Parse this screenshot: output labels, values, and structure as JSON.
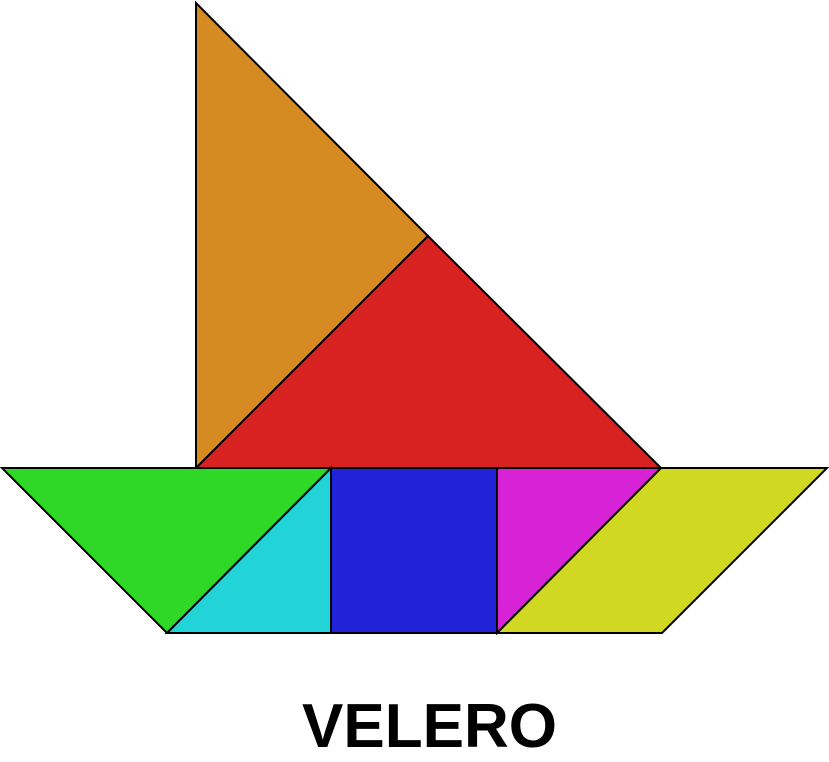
{
  "title": "VELERO",
  "pieces": [
    {
      "name": "sail-orange-triangle",
      "color": "#D68A22"
    },
    {
      "name": "sail-red-triangle",
      "color": "#D82222"
    },
    {
      "name": "hull-green-triangle",
      "color": "#2FD826"
    },
    {
      "name": "hull-cyan-triangle",
      "color": "#22D3D8"
    },
    {
      "name": "hull-blue-square",
      "color": "#2222D8"
    },
    {
      "name": "hull-magenta-triangle",
      "color": "#D822D6"
    },
    {
      "name": "hull-yellow-parallelogram",
      "color": "#D0D822"
    }
  ]
}
